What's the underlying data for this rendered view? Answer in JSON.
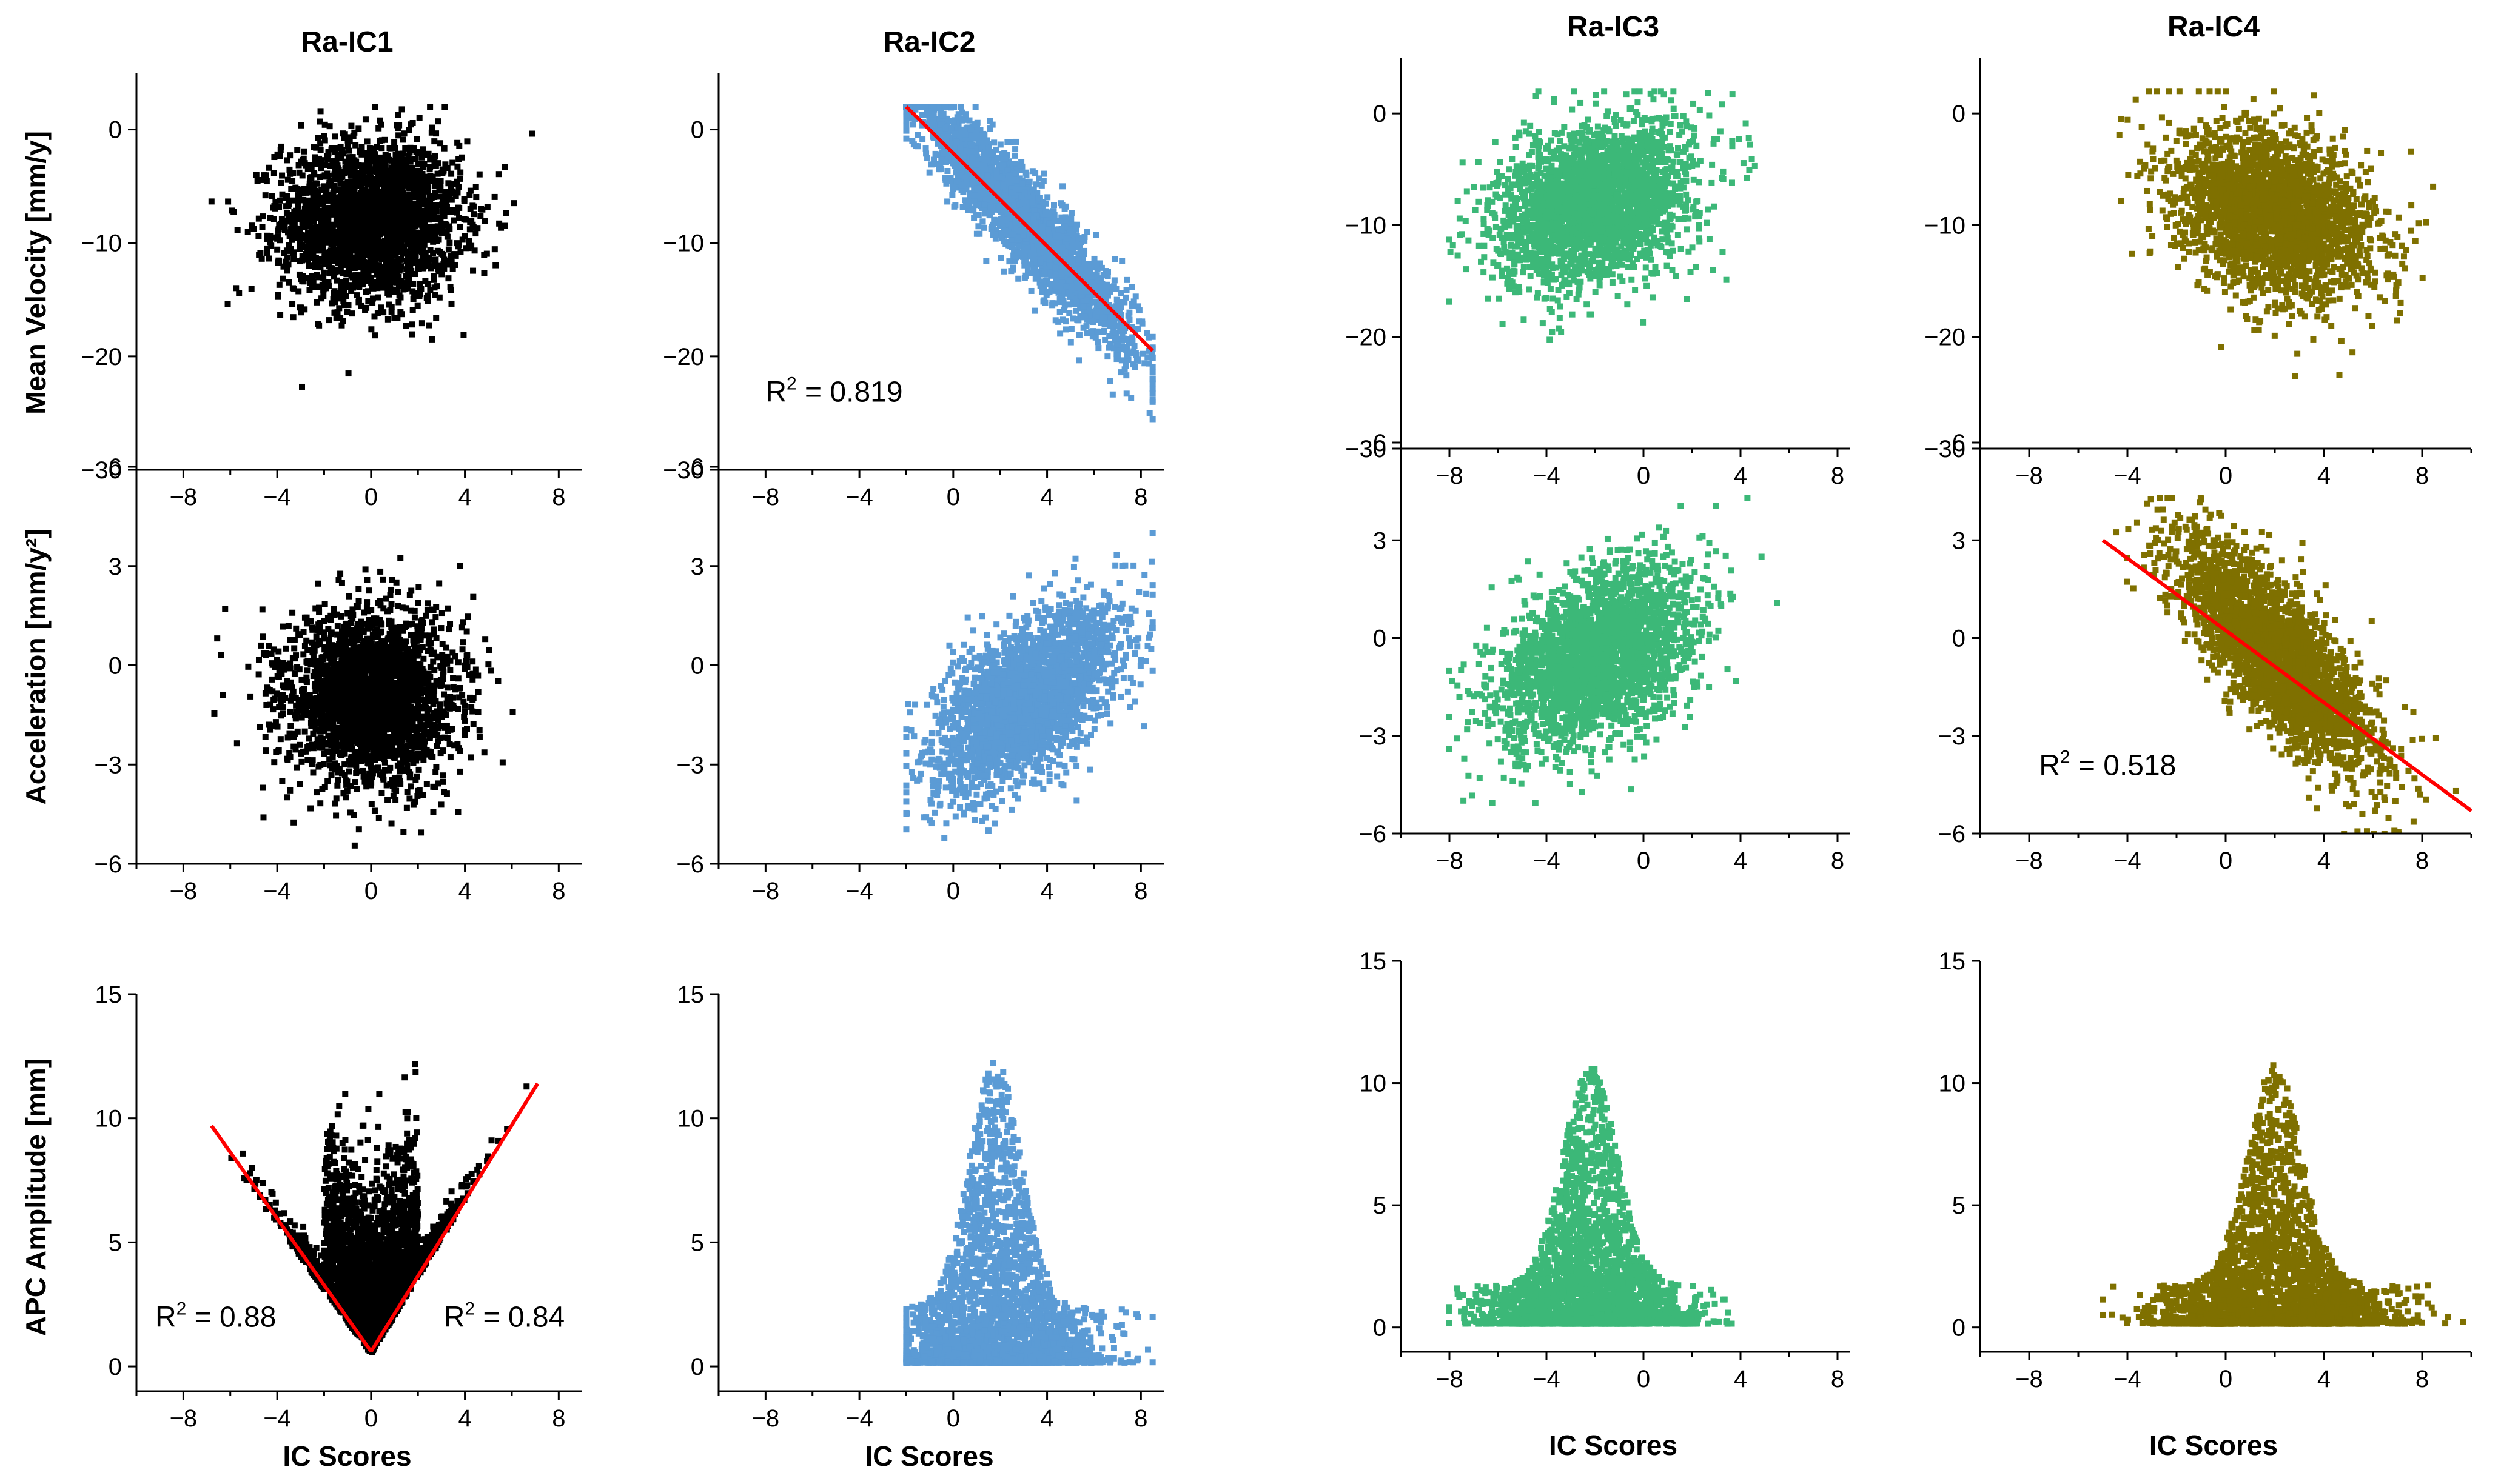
{
  "figure": {
    "columns": [
      "Ra-IC1",
      "Ra-IC2",
      "Ra-IC3",
      "Ra-IC4"
    ],
    "row_labels": [
      "Mean Velocity [mm/y]",
      "Acceleration [mm/y²]",
      "APC Amplitude [mm]"
    ],
    "x_title": "IC Scores"
  },
  "chart_data": [
    {
      "type": "scatter",
      "column": "Ra-IC1",
      "color": "#000000",
      "x_ticks": [
        -8,
        -4,
        0,
        4,
        8
      ],
      "xlim": [
        -10,
        9
      ],
      "y_ticks": [
        0,
        -10,
        -20,
        -30
      ],
      "ylim": [
        -30,
        5
      ],
      "y_label": "Mean Velocity [mm/y]",
      "cloud": {
        "cx": 0,
        "cy": -8,
        "sx": 1.9,
        "sy": 3.5,
        "rho": 0,
        "x_range": [
          -6.8,
          7
        ],
        "y_range": [
          -28,
          2
        ]
      },
      "fits": [],
      "annotations": []
    },
    {
      "type": "scatter",
      "column": "Ra-IC2",
      "color": "#5b9bd5",
      "x_ticks": [
        -8,
        -4,
        0,
        4,
        8
      ],
      "xlim": [
        -10,
        9
      ],
      "y_ticks": [
        0,
        -10,
        -20,
        -30
      ],
      "ylim": [
        -30,
        5
      ],
      "cloud": {
        "cx": 3,
        "cy": -8,
        "sx": 2.3,
        "sy": 5.5,
        "rho": -0.93,
        "x_range": [
          -2,
          8.5
        ],
        "y_range": [
          -28,
          2
        ]
      },
      "fits": [
        {
          "x1": -2,
          "y1": 2,
          "x2": 8.5,
          "y2": -19.5
        }
      ],
      "annotations": [
        {
          "label": "R",
          "sup": "2",
          "value": " = 0.819",
          "x": -8,
          "y": -24
        }
      ]
    },
    {
      "type": "scatter",
      "column": "Ra-IC3",
      "color": "#3cb878",
      "x_ticks": [
        -8,
        -4,
        0,
        4,
        8
      ],
      "xlim": [
        -10,
        8.5
      ],
      "y_ticks": [
        0,
        -10,
        -20,
        -30
      ],
      "ylim": [
        -30,
        5
      ],
      "cloud": {
        "cx": -2,
        "cy": -8,
        "sx": 2,
        "sy": 3.6,
        "rho": 0.3,
        "x_range": [
          -8,
          5.5
        ],
        "y_range": [
          -28,
          2
        ]
      },
      "fits": [],
      "annotations": []
    },
    {
      "type": "scatter",
      "column": "Ra-IC4",
      "color": "#7f7000",
      "x_ticks": [
        -8,
        -4,
        0,
        4,
        8
      ],
      "xlim": [
        -10,
        10
      ],
      "y_ticks": [
        0,
        -10,
        -20,
        -30
      ],
      "ylim": [
        -30,
        5
      ],
      "cloud": {
        "cx": 2,
        "cy": -9,
        "sx": 2,
        "sy": 3.7,
        "rho": -0.3,
        "x_range": [
          -5,
          10
        ],
        "y_range": [
          -28,
          2
        ]
      },
      "fits": [],
      "annotations": []
    },
    {
      "type": "scatter",
      "column": "Ra-IC1",
      "color": "#000000",
      "x_ticks": [
        -8,
        -4,
        0,
        4,
        8
      ],
      "xlim": [
        -10,
        9
      ],
      "y_ticks": [
        6,
        3,
        0,
        -3,
        -6
      ],
      "ylim": [
        -6,
        6
      ],
      "y_label": "Acceleration [mm/y²]",
      "cloud": {
        "cx": 0,
        "cy": -1,
        "sx": 1.8,
        "sy": 1.3,
        "rho": 0,
        "x_range": [
          -7,
          7
        ],
        "y_range": [
          -6,
          4.3
        ]
      },
      "fits": [],
      "annotations": []
    },
    {
      "type": "scatter",
      "column": "Ra-IC2",
      "color": "#5b9bd5",
      "x_ticks": [
        -8,
        -4,
        0,
        4,
        8
      ],
      "xlim": [
        -10,
        9
      ],
      "y_ticks": [
        6,
        3,
        0,
        -3,
        -6
      ],
      "ylim": [
        -6,
        6
      ],
      "cloud": {
        "cx": 3.2,
        "cy": -1,
        "sx": 2,
        "sy": 1.4,
        "rho": 0.62,
        "x_range": [
          -2,
          8.5
        ],
        "y_range": [
          -5.7,
          4
        ]
      },
      "fits": [],
      "annotations": []
    },
    {
      "type": "scatter",
      "column": "Ra-IC3",
      "color": "#3cb878",
      "x_ticks": [
        -8,
        -4,
        0,
        4,
        8
      ],
      "xlim": [
        -10,
        8.5
      ],
      "y_ticks": [
        6,
        3,
        0,
        -3,
        -6
      ],
      "ylim": [
        -6,
        6
      ],
      "cloud": {
        "cx": -2,
        "cy": -0.6,
        "sx": 2,
        "sy": 1.4,
        "rho": 0.42,
        "x_range": [
          -8,
          5.5
        ],
        "y_range": [
          -6,
          4.3
        ]
      },
      "fits": [],
      "annotations": []
    },
    {
      "type": "scatter",
      "column": "Ra-IC4",
      "color": "#7f7000",
      "x_ticks": [
        -8,
        -4,
        0,
        4,
        8
      ],
      "xlim": [
        -10,
        10
      ],
      "y_ticks": [
        6,
        3,
        0,
        -3,
        -6
      ],
      "ylim": [
        -6,
        6
      ],
      "cloud": {
        "cx": 2,
        "cy": -0.5,
        "sx": 2,
        "sy": 1.8,
        "rho": -0.78,
        "x_range": [
          -5,
          10
        ],
        "y_range": [
          -6,
          4.3
        ]
      },
      "fits": [
        {
          "x1": -5,
          "y1": 3,
          "x2": 10,
          "y2": -5.3
        }
      ],
      "annotations": [
        {
          "label": "R",
          "sup": "2",
          "value": " = 0.518",
          "x": -7.6,
          "y": -4.2
        }
      ]
    },
    {
      "type": "scatter",
      "column": "Ra-IC1",
      "color": "#000000",
      "x_ticks": [
        -8,
        -4,
        0,
        4,
        8
      ],
      "xlim": [
        -10,
        9
      ],
      "y_ticks": [
        15,
        10,
        5,
        0
      ],
      "ylim": [
        -1,
        15
      ],
      "cloud": {
        "shape": "v",
        "vertex_x": 0,
        "slope_left": -1.3,
        "slope_right": 1.55,
        "base": 0.5,
        "spread": 1.3,
        "x_range": [
          -6.8,
          7.1
        ]
      },
      "fits": [
        {
          "x1": -6.8,
          "y1": 9.7,
          "x2": 0,
          "y2": 0.6
        },
        {
          "x1": 0,
          "y1": 0.6,
          "x2": 7.1,
          "y2": 11.4
        }
      ],
      "annotations": [
        {
          "label": "R",
          "sup": "2",
          "value": " = 0.88",
          "x": -9.2,
          "y": 1.6
        },
        {
          "label": "R",
          "sup": "2",
          "value": " = 0.84",
          "x": 3.1,
          "y": 1.6
        }
      ]
    },
    {
      "type": "scatter",
      "column": "Ra-IC2",
      "color": "#5b9bd5",
      "x_ticks": [
        -8,
        -4,
        0,
        4,
        8
      ],
      "xlim": [
        -10,
        9
      ],
      "y_ticks": [
        15,
        10,
        5,
        0
      ],
      "ylim": [
        -1,
        15
      ],
      "cloud": {
        "shape": "peak",
        "cx": 1.8,
        "sx": 2,
        "amp": 10,
        "x_range": [
          -2,
          8.5
        ],
        "tail": 2.2
      },
      "fits": [],
      "annotations": []
    },
    {
      "type": "scatter",
      "column": "Ra-IC3",
      "color": "#3cb878",
      "x_ticks": [
        -8,
        -4,
        0,
        4,
        8
      ],
      "xlim": [
        -10,
        8.5
      ],
      "y_ticks": [
        15,
        10,
        5,
        0
      ],
      "ylim": [
        -1,
        15
      ],
      "cloud": {
        "shape": "peak",
        "cx": -2.2,
        "sx": 2,
        "amp": 9,
        "x_range": [
          -8,
          5.5
        ],
        "tail": 1.6
      },
      "fits": [],
      "annotations": []
    },
    {
      "type": "scatter",
      "column": "Ra-IC4",
      "color": "#7f7000",
      "x_ticks": [
        -8,
        -4,
        0,
        4,
        8
      ],
      "xlim": [
        -10,
        10
      ],
      "y_ticks": [
        15,
        10,
        5,
        0
      ],
      "ylim": [
        -1,
        15
      ],
      "cloud": {
        "shape": "peak",
        "cx": 2,
        "sx": 2.2,
        "amp": 9,
        "x_range": [
          -5,
          10
        ],
        "tail": 1.6
      },
      "fits": [],
      "annotations": []
    }
  ]
}
